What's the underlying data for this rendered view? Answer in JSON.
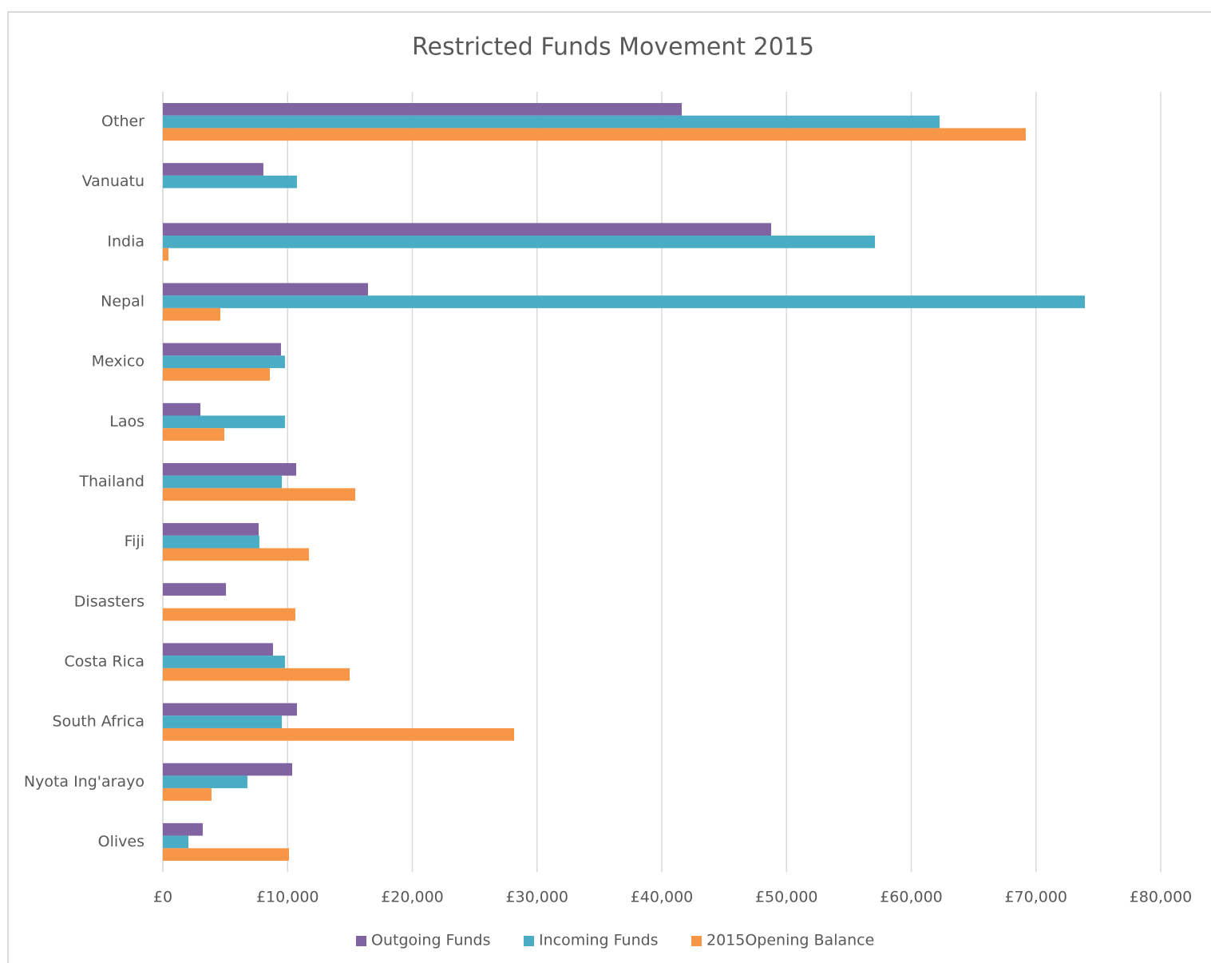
{
  "chart_data": {
    "type": "bar",
    "orientation": "horizontal",
    "title": "Restricted Funds Movement 2015",
    "categories": [
      "Other",
      "Vanuatu",
      "India",
      "Nepal",
      "Mexico",
      "Laos",
      "Thailand",
      "Fiji",
      "Disasters",
      "Costa Rica",
      "South Africa",
      "Nyota Ing'arayo",
      "Olives"
    ],
    "series": [
      {
        "name": "Outgoing Funds",
        "color": "#8064a2",
        "values": [
          41600,
          8060,
          48770,
          16450,
          9470,
          3010,
          10690,
          7680,
          5060,
          8830,
          10750,
          10370,
          3200
        ]
      },
      {
        "name": "Incoming Funds",
        "color": "#4bacc6",
        "values": [
          62270,
          10750,
          57090,
          73920,
          9790,
          9790,
          9540,
          7740,
          0,
          9790,
          9540,
          6780,
          2050
        ]
      },
      {
        "name": "2015Opening Balance",
        "color": "#f79646",
        "values": [
          69180,
          0,
          450,
          4610,
          8580,
          4930,
          15420,
          11710,
          10620,
          14980,
          28160,
          3900,
          10110
        ]
      }
    ],
    "xlim": [
      0,
      80000
    ],
    "xticks": [
      {
        "value": 0,
        "label": "£0"
      },
      {
        "value": 10000,
        "label": "£10,000"
      },
      {
        "value": 20000,
        "label": "£20,000"
      },
      {
        "value": 30000,
        "label": "£30,000"
      },
      {
        "value": 40000,
        "label": "£40,000"
      },
      {
        "value": 50000,
        "label": "£50,000"
      },
      {
        "value": 60000,
        "label": "£60,000"
      },
      {
        "value": 70000,
        "label": "£70,000"
      },
      {
        "value": 80000,
        "label": "£80,000"
      }
    ],
    "grid": true,
    "legend": "bottom"
  }
}
